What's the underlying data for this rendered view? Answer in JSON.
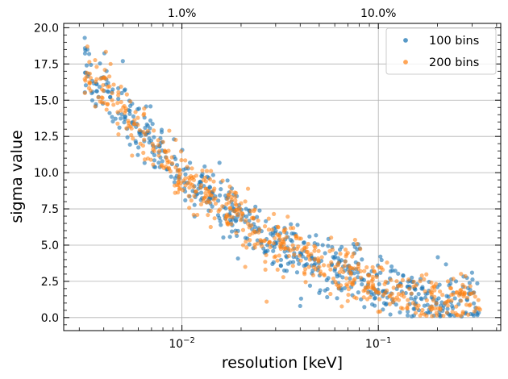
{
  "chart_data": {
    "type": "scatter",
    "xlabel": "resolution [keV]",
    "ylabel": "sigma value",
    "xscale": "log",
    "xlim": [
      0.0025,
      0.42
    ],
    "ylim": [
      -0.9,
      20.3
    ],
    "grid": true,
    "legend_position": "top-right",
    "x_ticks": [
      {
        "value": 0.01,
        "base": "10",
        "exp": "−2"
      },
      {
        "value": 0.1,
        "base": "10",
        "exp": "−1"
      }
    ],
    "y_ticks": [
      "0.0",
      "2.5",
      "5.0",
      "7.5",
      "10.0",
      "12.5",
      "15.0",
      "17.5",
      "20.0"
    ],
    "secondary_x_ticks": [
      {
        "value": 0.01,
        "label": "1.0%"
      },
      {
        "value": 0.1,
        "label": "10.0%"
      }
    ],
    "curve_points": [
      [
        0.0032,
        16.9
      ],
      [
        0.004,
        15.6
      ],
      [
        0.005,
        14.2
      ],
      [
        0.0065,
        12.6
      ],
      [
        0.008,
        11.2
      ],
      [
        0.01,
        9.8
      ],
      [
        0.013,
        8.6
      ],
      [
        0.016,
        7.6
      ],
      [
        0.02,
        6.8
      ],
      [
        0.025,
        5.7
      ],
      [
        0.03,
        5.2
      ],
      [
        0.04,
        4.4
      ],
      [
        0.05,
        3.8
      ],
      [
        0.07,
        3.2
      ],
      [
        0.1,
        2.2
      ],
      [
        0.13,
        1.6
      ],
      [
        0.17,
        1.3
      ],
      [
        0.22,
        1.2
      ],
      [
        0.33,
        1.2
      ]
    ],
    "x_range": [
      0.0032,
      0.33
    ],
    "series": [
      {
        "name": "100 bins",
        "color": "#1f77b4",
        "alpha": 0.6,
        "count": 600,
        "spread": 0.95,
        "seed": 7,
        "outliers": [
          [
            0.0032,
            19.3
          ],
          [
            0.0033,
            18.5
          ],
          [
            0.005,
            17.7
          ],
          [
            0.3,
            3.1
          ],
          [
            0.05,
            1.7
          ],
          [
            0.04,
            0.8
          ]
        ]
      },
      {
        "name": "200 bins",
        "color": "#ff7f0e",
        "alpha": 0.55,
        "count": 600,
        "spread": 0.95,
        "seed": 19,
        "outliers": [
          [
            0.0033,
            18.7
          ],
          [
            0.027,
            1.1
          ],
          [
            0.021,
            3.5
          ],
          [
            0.1,
            0.4
          ]
        ]
      }
    ]
  }
}
